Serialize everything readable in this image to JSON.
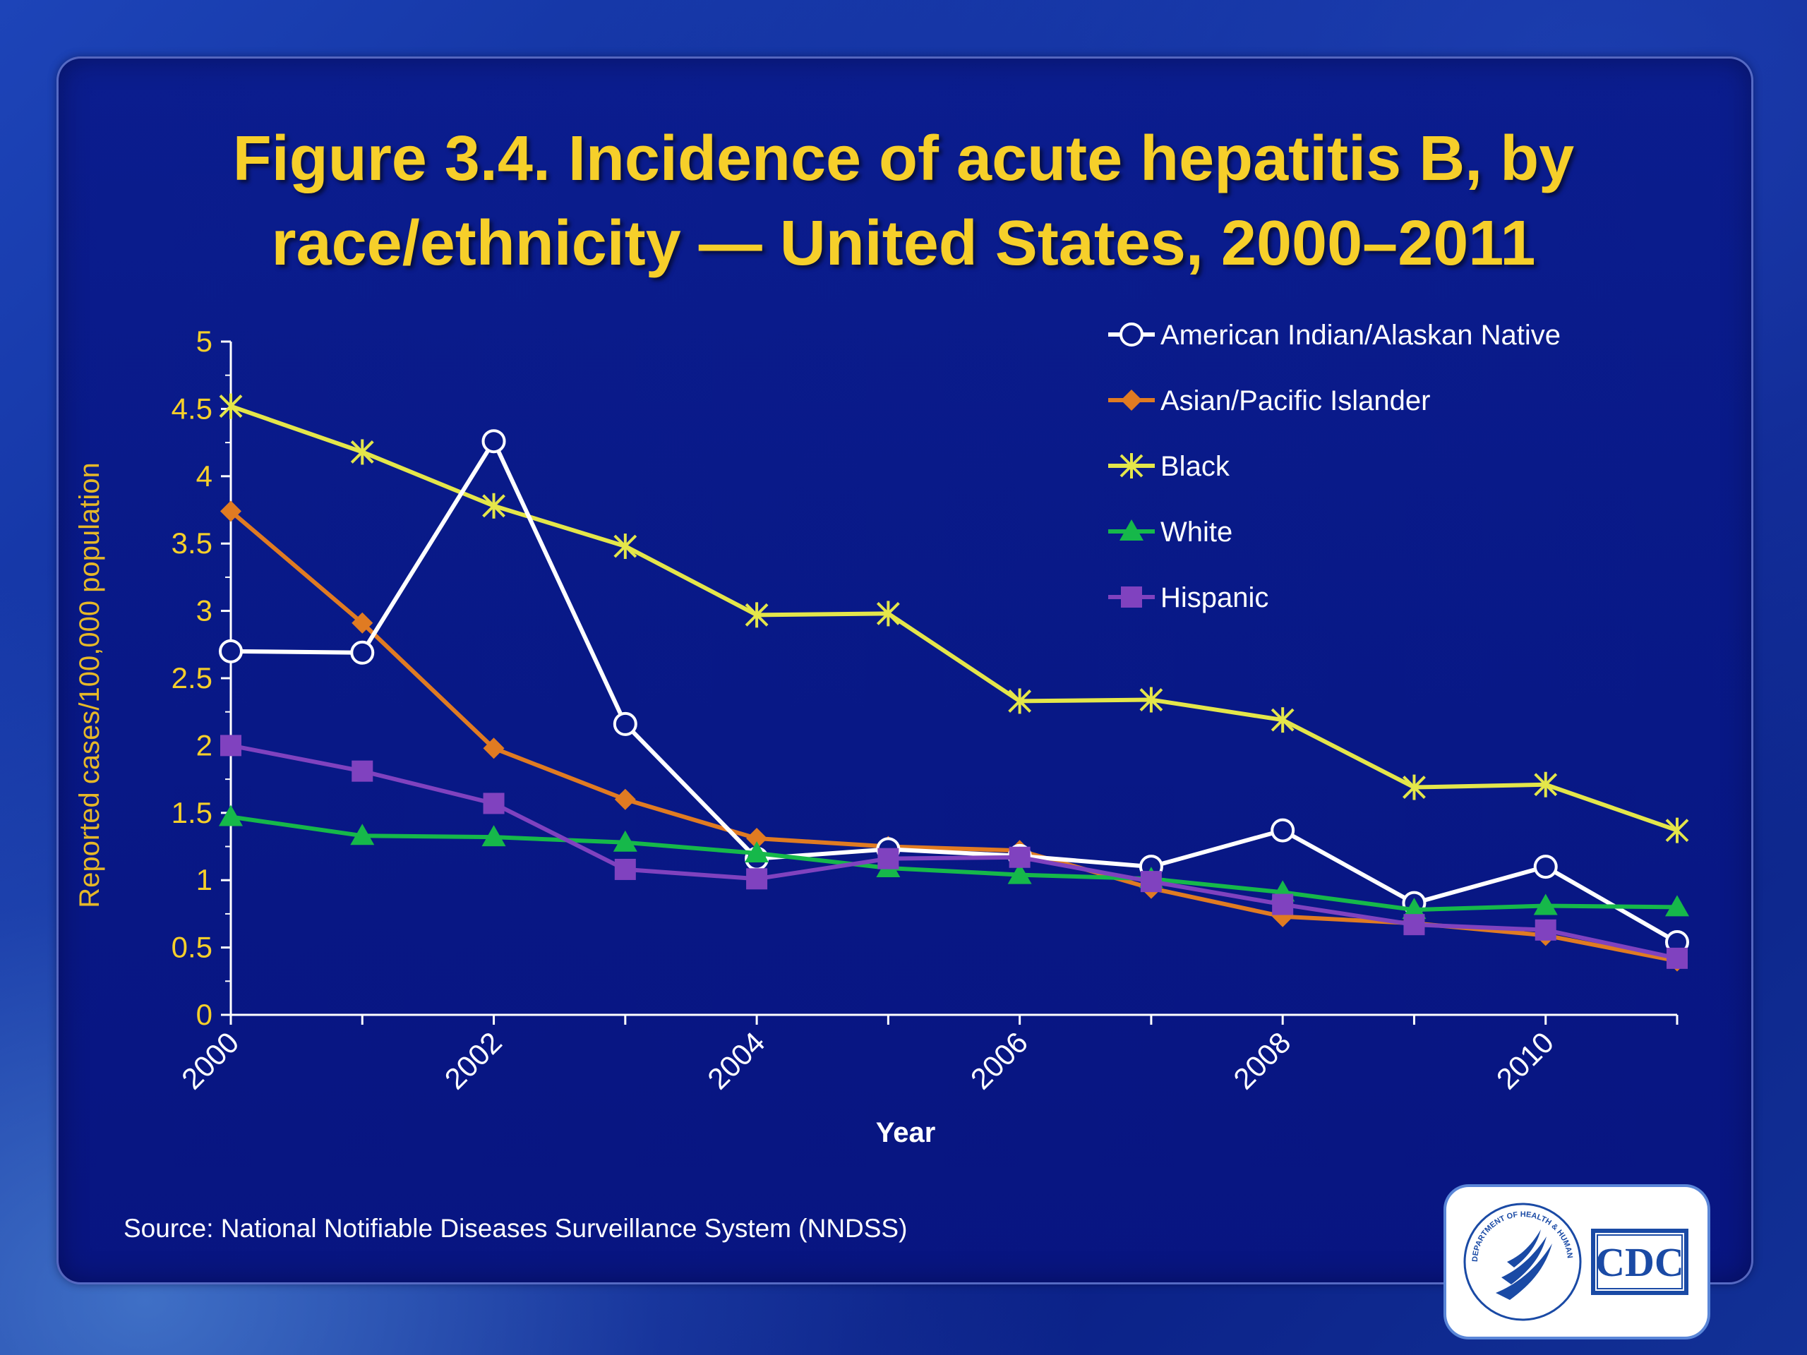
{
  "title": {
    "line1": "Figure 3.4. Incidence of acute hepatitis B, by",
    "line2": "race/ethnicity — United States, 2000–2011"
  },
  "source": "Source: National Notifiable Diseases Surveillance System (NNDSS)",
  "logo": {
    "label": "CDC",
    "seal_text": "DEPARTMENT OF HEALTH & HUMAN SERVICES USA",
    "icon": "hhs-eagle-seal"
  },
  "colors": {
    "axis": "#ffffff",
    "tick_text": "#f6cf2a",
    "ylabel": "#e6b828",
    "american_indian": "#ffffff",
    "asian_pacific": "#e07b22",
    "black": "#e4e64a",
    "white": "#16b84a",
    "hispanic": "#8042bf"
  },
  "chart_data": {
    "type": "line",
    "title": "Figure 3.4. Incidence of acute hepatitis B, by race/ethnicity — United States, 2000–2011",
    "xlabel": "Year",
    "ylabel": "Reported cases/100,000 population",
    "x": [
      2000,
      2001,
      2002,
      2003,
      2004,
      2005,
      2006,
      2007,
      2008,
      2009,
      2010,
      2011
    ],
    "x_tick_labels": [
      "2000",
      "2002",
      "2004",
      "2006",
      "2008",
      "2010"
    ],
    "ylim": [
      0,
      5
    ],
    "y_ticks": [
      "0",
      "0.5",
      "1",
      "1.5",
      "2",
      "2.5",
      "3",
      "3.5",
      "4",
      "4.5",
      "5"
    ],
    "grid": false,
    "legend_position": "top-right",
    "series": [
      {
        "name": "American Indian/Alaskan Native",
        "marker": "circle",
        "color": "#ffffff",
        "values": [
          2.7,
          2.69,
          4.26,
          2.16,
          1.16,
          1.23,
          1.18,
          1.1,
          1.37,
          0.83,
          1.1,
          0.54
        ]
      },
      {
        "name": "Asian/Pacific Islander",
        "marker": "diamond",
        "color": "#e07b22",
        "values": [
          3.74,
          2.91,
          1.98,
          1.6,
          1.31,
          1.25,
          1.22,
          0.94,
          0.73,
          0.68,
          0.59,
          0.4
        ]
      },
      {
        "name": "Black",
        "marker": "star",
        "color": "#e4e64a",
        "values": [
          4.52,
          4.18,
          3.78,
          3.48,
          2.97,
          2.98,
          2.33,
          2.34,
          2.19,
          1.69,
          1.71,
          1.37
        ]
      },
      {
        "name": "White",
        "marker": "triangle",
        "color": "#16b84a",
        "values": [
          1.47,
          1.33,
          1.32,
          1.28,
          1.2,
          1.09,
          1.04,
          1.01,
          0.91,
          0.78,
          0.81,
          0.8
        ]
      },
      {
        "name": "Hispanic",
        "marker": "square",
        "color": "#8042bf",
        "values": [
          2.0,
          1.81,
          1.57,
          1.08,
          1.01,
          1.16,
          1.17,
          0.99,
          0.82,
          0.67,
          0.63,
          0.42
        ]
      }
    ]
  }
}
